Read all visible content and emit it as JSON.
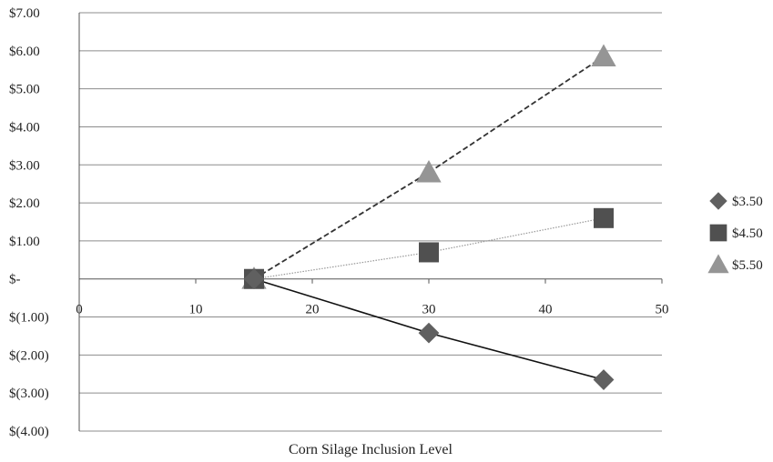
{
  "chart_data": {
    "type": "line",
    "title": "",
    "xlabel": "Corn Silage Inclusion Level",
    "ylabel": "",
    "xlim": [
      0,
      50
    ],
    "ylim": [
      -4,
      7
    ],
    "x_ticks": [
      0,
      10,
      20,
      30,
      40,
      50
    ],
    "y_ticks": [
      7,
      6,
      5,
      4,
      3,
      2,
      1,
      0,
      -1,
      -2,
      -3,
      -4
    ],
    "y_tick_labels": [
      "$7.00",
      "$6.00",
      "$5.00",
      "$4.00",
      "$3.00",
      "$2.00",
      "$1.00",
      "$-",
      "$(1.00)",
      "$(2.00)",
      "$(3.00)",
      "$(4.00)"
    ],
    "grid": "horizontal",
    "legend_position": "right",
    "series": [
      {
        "name": "$3.50",
        "marker": "diamond",
        "line_style": "solid",
        "color": "#606060",
        "line_color": "#111111",
        "x": [
          15,
          30,
          45
        ],
        "y": [
          0,
          -1.42,
          -2.65
        ]
      },
      {
        "name": "$4.50",
        "marker": "square",
        "line_style": "dotted",
        "color": "#505050",
        "line_color": "#999999",
        "x": [
          15,
          30,
          45
        ],
        "y": [
          0,
          0.7,
          1.6
        ]
      },
      {
        "name": "$5.50",
        "marker": "triangle",
        "line_style": "dashed",
        "color": "#959595",
        "line_color": "#333333",
        "x": [
          15,
          30,
          45
        ],
        "y": [
          0,
          2.8,
          5.85
        ]
      }
    ]
  }
}
